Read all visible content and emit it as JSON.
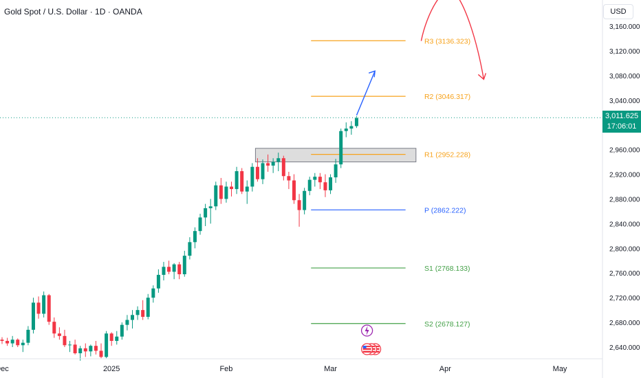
{
  "title": "Gold Spot / U.S. Dollar · 1D · OANDA",
  "currency": "USD",
  "last_price": {
    "value": "3,011.625",
    "countdown": "17:06:01"
  },
  "colors": {
    "up": "#089981",
    "down": "#f23645",
    "resistance": "#f7a21b",
    "pivot": "#2962ff",
    "support": "#43a047"
  },
  "chart_data": {
    "type": "candlestick",
    "ylim": [
      2626,
      3170
    ],
    "y_ticks": [
      2640,
      2680,
      2720,
      2760,
      2800,
      2840,
      2880,
      2920,
      2960,
      3040,
      3080,
      3120,
      3160
    ],
    "y_tick_labels": [
      "2,640.000",
      "2,680.000",
      "2,720.000",
      "2,760.000",
      "2,800.000",
      "2,840.000",
      "2,880.000",
      "2,920.000",
      "2,960.000",
      "3,040.000",
      "3,080.000",
      "3,120.000",
      "3,160.000"
    ],
    "x_tick_labels": [
      {
        "label": "Dec",
        "bar": 0
      },
      {
        "label": "2025",
        "bar": 21
      },
      {
        "label": "Feb",
        "bar": 43
      },
      {
        "label": "Mar",
        "bar": 63
      },
      {
        "label": "Apr",
        "bar": 85
      },
      {
        "label": "May",
        "bar": 107
      }
    ],
    "candles": [
      [
        2652,
        2656,
        2645,
        2650
      ],
      [
        2650,
        2655,
        2642,
        2646
      ],
      [
        2646,
        2658,
        2640,
        2652
      ],
      [
        2652,
        2654,
        2640,
        2643
      ],
      [
        2643,
        2652,
        2632,
        2647
      ],
      [
        2647,
        2674,
        2643,
        2668
      ],
      [
        2668,
        2720,
        2662,
        2712
      ],
      [
        2712,
        2722,
        2686,
        2694
      ],
      [
        2694,
        2730,
        2688,
        2724
      ],
      [
        2724,
        2726,
        2676,
        2681
      ],
      [
        2681,
        2688,
        2655,
        2662
      ],
      [
        2662,
        2672,
        2652,
        2658
      ],
      [
        2658,
        2668,
        2640,
        2643
      ],
      [
        2643,
        2650,
        2632,
        2644
      ],
      [
        2644,
        2652,
        2628,
        2630
      ],
      [
        2630,
        2642,
        2618,
        2638
      ],
      [
        2638,
        2646,
        2624,
        2633
      ],
      [
        2633,
        2644,
        2625,
        2642
      ],
      [
        2642,
        2650,
        2628,
        2634
      ],
      [
        2634,
        2646,
        2622,
        2624
      ],
      [
        2624,
        2666,
        2622,
        2662
      ],
      [
        2662,
        2664,
        2642,
        2650
      ],
      [
        2650,
        2666,
        2644,
        2657
      ],
      [
        2657,
        2680,
        2652,
        2676
      ],
      [
        2676,
        2692,
        2667,
        2684
      ],
      [
        2684,
        2700,
        2670,
        2692
      ],
      [
        2692,
        2706,
        2684,
        2700
      ],
      [
        2700,
        2716,
        2684,
        2689
      ],
      [
        2689,
        2726,
        2685,
        2720
      ],
      [
        2720,
        2740,
        2712,
        2735
      ],
      [
        2735,
        2766,
        2728,
        2757
      ],
      [
        2757,
        2778,
        2748,
        2770
      ],
      [
        2770,
        2780,
        2758,
        2762
      ],
      [
        2762,
        2776,
        2750,
        2774
      ],
      [
        2774,
        2778,
        2750,
        2758
      ],
      [
        2758,
        2796,
        2754,
        2788
      ],
      [
        2788,
        2818,
        2782,
        2810
      ],
      [
        2810,
        2834,
        2800,
        2828
      ],
      [
        2828,
        2856,
        2822,
        2850
      ],
      [
        2850,
        2872,
        2836,
        2865
      ],
      [
        2865,
        2880,
        2840,
        2868
      ],
      [
        2868,
        2908,
        2862,
        2902
      ],
      [
        2902,
        2914,
        2872,
        2880
      ],
      [
        2880,
        2908,
        2874,
        2900
      ],
      [
        2900,
        2908,
        2884,
        2896
      ],
      [
        2896,
        2932,
        2888,
        2925
      ],
      [
        2925,
        2930,
        2888,
        2892
      ],
      [
        2892,
        2910,
        2872,
        2900
      ],
      [
        2900,
        2938,
        2892,
        2932
      ],
      [
        2932,
        2946,
        2908,
        2912
      ],
      [
        2912,
        2944,
        2904,
        2938
      ],
      [
        2938,
        2952,
        2924,
        2934
      ],
      [
        2934,
        2946,
        2922,
        2940
      ],
      [
        2940,
        2955,
        2925,
        2946
      ],
      [
        2946,
        2950,
        2910,
        2917
      ],
      [
        2917,
        2924,
        2896,
        2910
      ],
      [
        2910,
        2920,
        2872,
        2878
      ],
      [
        2878,
        2888,
        2835,
        2862
      ],
      [
        2862,
        2898,
        2855,
        2893
      ],
      [
        2893,
        2916,
        2886,
        2911
      ],
      [
        2911,
        2922,
        2900,
        2916
      ],
      [
        2916,
        2922,
        2896,
        2907
      ],
      [
        2907,
        2920,
        2883,
        2894
      ],
      [
        2894,
        2920,
        2888,
        2915
      ],
      [
        2915,
        2945,
        2906,
        2936
      ],
      [
        2936,
        2994,
        2930,
        2990
      ],
      [
        2990,
        3004,
        2980,
        2994
      ],
      [
        2994,
        3006,
        2984,
        2998
      ],
      [
        2998,
        3014,
        2995,
        3011
      ]
    ],
    "levels": [
      {
        "key": "R3",
        "label": "R3 (3136.323)",
        "value": 3136.323,
        "type": "resistance"
      },
      {
        "key": "R2",
        "label": "R2 (3046.317)",
        "value": 3046.317,
        "type": "resistance"
      },
      {
        "key": "R1",
        "label": "R1 (2952.228)",
        "value": 2952.228,
        "type": "resistance"
      },
      {
        "key": "P",
        "label": "P (2862.222)",
        "value": 2862.222,
        "type": "pivot"
      },
      {
        "key": "S1",
        "label": "S1 (2768.133)",
        "value": 2768.133,
        "type": "support"
      },
      {
        "key": "S2",
        "label": "S2 (2678.127)",
        "value": 2678.127,
        "type": "support"
      }
    ],
    "current_price": 3011.625,
    "range_box": {
      "bar_from": 49,
      "bar_to": 79,
      "value_from": 2940,
      "value_to": 2962
    },
    "forecast_up": {
      "from_bar": 68,
      "from_value": 3011,
      "to_bar": 71,
      "to_value": 3065
    },
    "forecast_down": {
      "bars": [
        80,
        85,
        88,
        92
      ],
      "values": [
        3136,
        3170,
        3140,
        3076
      ]
    }
  }
}
